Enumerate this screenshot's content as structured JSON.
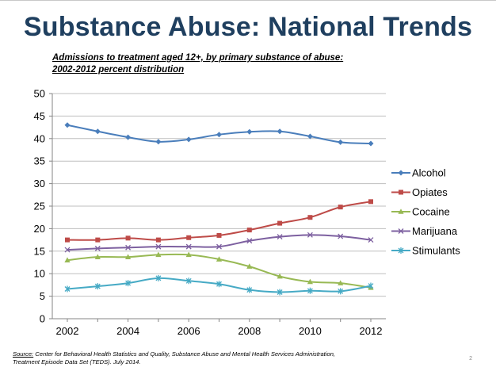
{
  "slide": {
    "title": "Substance Abuse: National Trends",
    "subtitle_line1": "Admissions to treatment aged 12+, by primary substance of abuse:",
    "subtitle_line2": "2002-2012 percent distribution",
    "source_label": "Source:",
    "source_text": "  Center for Behavioral Health Statistics and Quality, Substance Abuse and Mental Health Services Administration,",
    "source_text2": "Treatment Episode Data Set (TEDS). July 2014.",
    "page_number": "2"
  },
  "chart_data": {
    "type": "line",
    "title": "Admissions to treatment aged 12+, by primary substance of abuse: 2002-2012 percent distribution",
    "xlabel": "",
    "ylabel": "",
    "x": [
      2002,
      2003,
      2004,
      2005,
      2006,
      2007,
      2008,
      2009,
      2010,
      2011,
      2012
    ],
    "xlim": [
      2002,
      2012
    ],
    "ylim": [
      0,
      50
    ],
    "xticks": [
      2002,
      2004,
      2006,
      2008,
      2010,
      2012
    ],
    "yticks": [
      0,
      5,
      10,
      15,
      20,
      25,
      30,
      35,
      40,
      45,
      50
    ],
    "grid": "horizontal",
    "legend": "right",
    "series": [
      {
        "name": "Alcohol",
        "color": "#4a7ebb",
        "marker": "diamond",
        "values": [
          43.0,
          41.6,
          40.3,
          39.3,
          39.8,
          40.9,
          41.5,
          41.6,
          40.5,
          39.2,
          38.9
        ]
      },
      {
        "name": "Opiates",
        "color": "#be4b48",
        "marker": "square",
        "values": [
          17.5,
          17.5,
          17.9,
          17.5,
          18.0,
          18.5,
          19.7,
          21.2,
          22.5,
          24.8,
          26.0
        ]
      },
      {
        "name": "Cocaine",
        "color": "#98b954",
        "marker": "triangle",
        "values": [
          13.0,
          13.7,
          13.7,
          14.2,
          14.2,
          13.2,
          11.6,
          9.4,
          8.2,
          7.9,
          6.9
        ]
      },
      {
        "name": "Marijuana",
        "color": "#7d60a0",
        "marker": "x",
        "values": [
          15.3,
          15.6,
          15.8,
          16.0,
          16.0,
          16.0,
          17.3,
          18.2,
          18.6,
          18.3,
          17.5
        ]
      },
      {
        "name": "Stimulants",
        "color": "#46aac5",
        "marker": "asterisk",
        "values": [
          6.6,
          7.2,
          7.9,
          9.0,
          8.4,
          7.7,
          6.4,
          5.9,
          6.2,
          6.1,
          7.3
        ]
      }
    ]
  }
}
